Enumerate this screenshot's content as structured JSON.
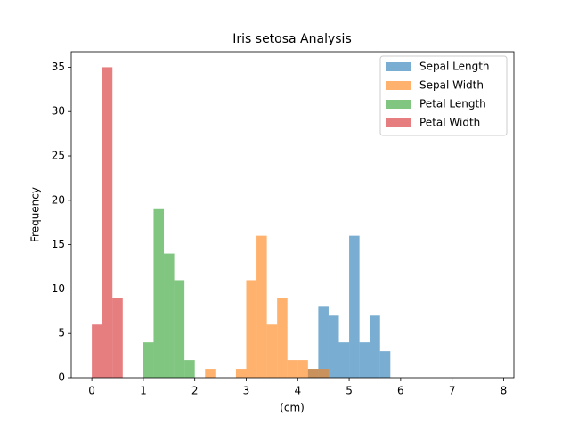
{
  "chart_data": {
    "type": "histogram",
    "title": "Iris setosa Analysis",
    "xlabel": "(cm)",
    "ylabel": "Frequency",
    "alpha": 0.6,
    "legend": "upper right",
    "xlim": [
      -0.4,
      8.2
    ],
    "ylim": [
      0,
      36.75
    ],
    "xticks": [
      0,
      1,
      2,
      3,
      4,
      5,
      6,
      7,
      8
    ],
    "yticks": [
      0,
      5,
      10,
      15,
      20,
      25,
      30,
      35
    ],
    "series": [
      {
        "name": "Sepal Length",
        "color": "#1f77b4",
        "bins": [
          4.2,
          4.4,
          4.6,
          4.8,
          5.0,
          5.2,
          5.4,
          5.6,
          5.8
        ],
        "values": [
          1,
          8,
          7,
          4,
          16,
          4,
          7,
          3
        ]
      },
      {
        "name": "Sepal Width",
        "color": "#ff7f0e",
        "bins": [
          2.2,
          2.4,
          2.6,
          2.8,
          3.0,
          3.2,
          3.4,
          3.6,
          3.8,
          4.0,
          4.2,
          4.4,
          4.6
        ],
        "values": [
          1,
          0,
          0,
          1,
          11,
          16,
          6,
          9,
          2,
          2,
          1,
          1
        ]
      },
      {
        "name": "Petal Length",
        "color": "#2ca02c",
        "bins": [
          1.0,
          1.2,
          1.4,
          1.6,
          1.8,
          2.0
        ],
        "values": [
          4,
          19,
          14,
          11,
          2
        ]
      },
      {
        "name": "Petal Width",
        "color": "#d62728",
        "bins": [
          0.0,
          0.2,
          0.4,
          0.6
        ],
        "values": [
          6,
          35,
          9
        ]
      }
    ]
  }
}
